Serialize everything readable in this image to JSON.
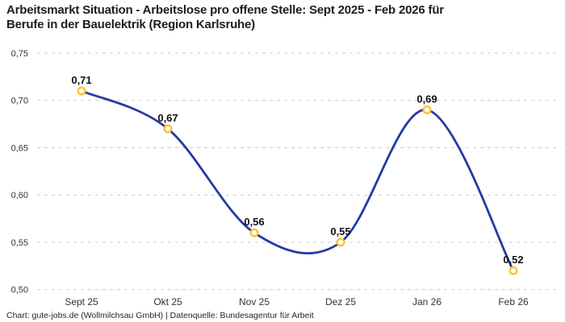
{
  "header": {
    "title_line1": "Arbeitsmarkt Situation - Arbeitslose pro offene Stelle: Sept 2025 - Feb 2026 für",
    "title_line2": "Berufe in der Bauelektrik (Region Karlsruhe)"
  },
  "footer": {
    "text": "Chart: gute-jobs.de (Wollmilchsau GmbH) | Datenquelle: Bundesagentur für Arbeit"
  },
  "chart_data": {
    "type": "line",
    "title": "Arbeitsmarkt Situation - Arbeitslose pro offene Stelle: Sept 2025 - Feb 2026 für Berufe in der Bauelektrik (Region Karlsruhe)",
    "categories": [
      "Sept 25",
      "Okt 25",
      "Nov 25",
      "Dez 25",
      "Jan 26",
      "Feb 26"
    ],
    "values": [
      0.71,
      0.67,
      0.56,
      0.55,
      0.69,
      0.52
    ],
    "point_labels": [
      "0,71",
      "0,67",
      "0,56",
      "0,55",
      "0,69",
      "0,52"
    ],
    "xlabel": "",
    "ylabel": "",
    "ylim": [
      0.5,
      0.75
    ],
    "yticks": [
      0.75,
      0.7,
      0.65,
      0.6,
      0.55,
      0.5
    ],
    "ytick_labels": [
      "0,75",
      "0,70",
      "0,65",
      "0,60",
      "0,55",
      "0,50"
    ],
    "grid": "horizontal-dashed",
    "legend": "none",
    "smoothing": "spline",
    "colors": {
      "line": "#2539A5",
      "marker_stroke": "#FCC230",
      "marker_fill": "#FFFFFF",
      "grid": "#CCCCCC",
      "tick_text": "#333333",
      "point_label": "#111111",
      "title": "#1D1D1D",
      "footer": "#262626",
      "background": "#FFFFFF"
    }
  }
}
